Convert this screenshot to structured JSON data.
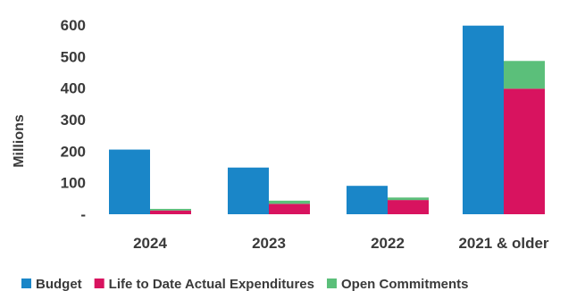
{
  "chart_data": {
    "type": "bar",
    "stacked_groups": true,
    "categories": [
      "2024",
      "2023",
      "2022",
      "2021 & older"
    ],
    "ylabel": "Millions",
    "ylim": [
      0,
      600
    ],
    "yticks": [
      "-",
      "100",
      "200",
      "300",
      "400",
      "500",
      "600"
    ],
    "grid": false,
    "legend_position": "bottom",
    "series": [
      {
        "name": "Budget",
        "values": [
          205,
          148,
          90,
          598
        ],
        "color": "#1a86c8",
        "stack": "budget"
      },
      {
        "name": "Life to Date Actual Expenditures",
        "values": [
          12,
          33,
          45,
          398
        ],
        "color": "#d8135f",
        "stack": "actual"
      },
      {
        "name": "Open Commitments",
        "values": [
          5,
          10,
          8,
          88
        ],
        "color": "#5bbf7a",
        "stack": "actual"
      }
    ]
  }
}
